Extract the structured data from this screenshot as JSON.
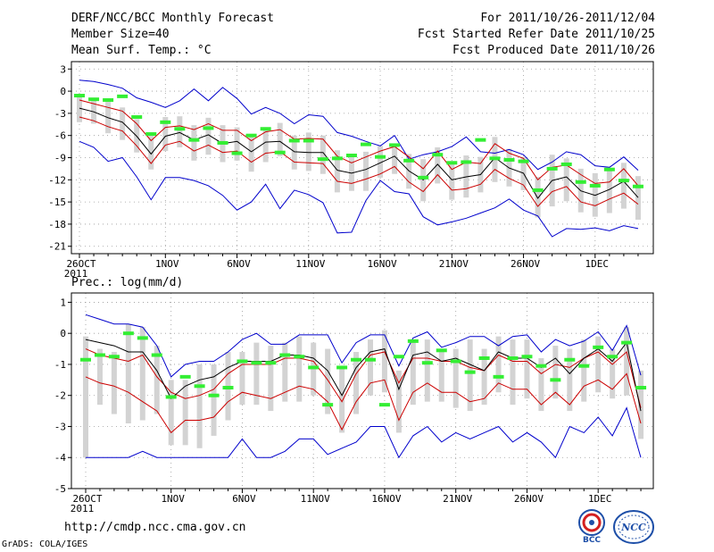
{
  "header": {
    "title": "DERF/NCC/BCC Monthly Forecast",
    "member_size": "Member Size=40",
    "variable": "Mean Surf. Temp.: °C",
    "period": "For 2011/10/26-2011/12/04",
    "start_date": "Fcst Started Refer Date 2011/10/25",
    "produced_date": "Fcst Produced Date 2011/10/26"
  },
  "footer": {
    "url": "http://cmdp.ncc.cma.gov.cn",
    "grads": "GrADS: COLA/IGES",
    "logo_left": "BCC",
    "logo_right": "NCC"
  },
  "colors": {
    "max_min": "#0000cc",
    "quartile": "#cc0000",
    "mean": "#000000",
    "box": "#d3d3d3",
    "obs": "#33ee33",
    "grid": "#999999"
  },
  "chart_data": [
    {
      "type": "line",
      "title": "Mean Surf. Temp.: °C",
      "ylim": [
        -22,
        4
      ],
      "yticks": [
        3,
        0,
        -3,
        -6,
        -9,
        -12,
        -15,
        -18,
        -21
      ],
      "xlim": [
        0,
        39
      ],
      "x_ticks": [
        {
          "day": 0,
          "label": "26OCT",
          "sub": "2011"
        },
        {
          "day": 6,
          "label": "1NOV"
        },
        {
          "day": 11,
          "label": "6NOV"
        },
        {
          "day": 16,
          "label": "11NOV"
        },
        {
          "day": 21,
          "label": "16NOV"
        },
        {
          "day": 26,
          "label": "21NOV"
        },
        {
          "day": 31,
          "label": "26NOV"
        },
        {
          "day": 36,
          "label": "1DEC"
        }
      ],
      "series": [
        {
          "name": "max",
          "values": [
            1.5,
            1.3,
            0.9,
            0.4,
            -0.9,
            -1.5,
            -2.2,
            -1.3,
            0.3,
            -1.3,
            0.5,
            -1.0,
            -3.1,
            -2.2,
            -3.0,
            -4.4,
            -3.2,
            -3.4,
            -5.6,
            -6.1,
            -6.8,
            -7.4,
            -6.0,
            -9.2,
            -8.6,
            -8.2,
            -7.5,
            -6.2,
            -8.2,
            -8.4,
            -7.9,
            -8.6,
            -10.6,
            -9.6,
            -8.2,
            -8.6,
            -10.1,
            -10.3,
            -8.9,
            -10.7
          ]
        },
        {
          "name": "q_upper",
          "values": [
            -1.2,
            -1.7,
            -2.2,
            -2.7,
            -4.4,
            -6.7,
            -4.9,
            -4.7,
            -5.2,
            -4.4,
            -5.3,
            -5.3,
            -6.7,
            -5.5,
            -5.2,
            -6.5,
            -6.4,
            -6.5,
            -8.8,
            -9.7,
            -8.9,
            -8.1,
            -7.5,
            -8.9,
            -10.5,
            -8.1,
            -10.6,
            -9.6,
            -9.8,
            -7.1,
            -8.4,
            -9.1,
            -12.0,
            -10.3,
            -10.0,
            -11.3,
            -12.5,
            -12.3,
            -10.5,
            -12.8
          ]
        },
        {
          "name": "mean",
          "values": [
            -2.3,
            -2.8,
            -3.6,
            -4.2,
            -6.1,
            -8.5,
            -6.1,
            -5.6,
            -6.6,
            -5.9,
            -7.1,
            -6.8,
            -8.2,
            -6.9,
            -6.8,
            -8.2,
            -8.3,
            -8.3,
            -10.7,
            -11.1,
            -10.6,
            -9.7,
            -8.8,
            -10.8,
            -12.0,
            -9.9,
            -12.0,
            -11.6,
            -11.3,
            -9.0,
            -10.4,
            -11.1,
            -14.5,
            -12.1,
            -11.6,
            -13.5,
            -14.1,
            -13.3,
            -12.2,
            -14.4
          ]
        },
        {
          "name": "q_lower",
          "values": [
            -3.5,
            -4.0,
            -4.8,
            -5.4,
            -7.4,
            -9.8,
            -7.3,
            -6.8,
            -8.1,
            -7.3,
            -8.3,
            -8.1,
            -9.6,
            -8.4,
            -8.2,
            -9.6,
            -9.7,
            -9.8,
            -12.2,
            -12.5,
            -11.9,
            -11.2,
            -10.2,
            -12.3,
            -13.6,
            -11.3,
            -13.4,
            -13.2,
            -12.6,
            -10.6,
            -11.8,
            -12.7,
            -15.6,
            -13.6,
            -12.9,
            -15.0,
            -15.5,
            -14.6,
            -13.8,
            -15.3
          ]
        },
        {
          "name": "min",
          "values": [
            -6.8,
            -7.6,
            -9.5,
            -9.0,
            -11.6,
            -14.7,
            -11.7,
            -11.7,
            -12.1,
            -12.8,
            -14.1,
            -16.1,
            -15.0,
            -12.6,
            -15.9,
            -13.4,
            -14.0,
            -15.1,
            -19.2,
            -19.1,
            -14.8,
            -12.1,
            -13.6,
            -13.9,
            -17.0,
            -18.1,
            -17.7,
            -17.2,
            -16.5,
            -15.8,
            -14.6,
            -16.1,
            -16.9,
            -19.7,
            -18.6,
            -18.7,
            -18.5,
            -18.9,
            -18.2,
            -18.6
          ]
        }
      ],
      "boxes": [
        {
          "hi": -0.8,
          "lo": -4.2
        },
        {
          "hi": -0.9,
          "lo": -4.4
        },
        {
          "hi": -1.3,
          "lo": -5.7
        },
        {
          "hi": -2.2,
          "lo": -6.6
        },
        {
          "hi": -3.8,
          "lo": -8.3
        },
        {
          "hi": -5.8,
          "lo": -10.6
        },
        {
          "hi": -3.5,
          "lo": -8.1
        },
        {
          "hi": -3.4,
          "lo": -7.6
        },
        {
          "hi": -4.6,
          "lo": -9.4
        },
        {
          "hi": -3.6,
          "lo": -8.6
        },
        {
          "hi": -4.6,
          "lo": -9.6
        },
        {
          "hi": -4.9,
          "lo": -9.4
        },
        {
          "hi": -5.9,
          "lo": -10.9
        },
        {
          "hi": -4.9,
          "lo": -9.6
        },
        {
          "hi": -4.3,
          "lo": -8.8
        },
        {
          "hi": -6.0,
          "lo": -10.6
        },
        {
          "hi": -5.6,
          "lo": -10.8
        },
        {
          "hi": -6.0,
          "lo": -11.2
        },
        {
          "hi": -8.0,
          "lo": -13.7
        },
        {
          "hi": -8.9,
          "lo": -13.5
        },
        {
          "hi": -8.2,
          "lo": -13.5
        },
        {
          "hi": -7.4,
          "lo": -11.7
        },
        {
          "hi": -7.1,
          "lo": -11.2
        },
        {
          "hi": -8.5,
          "lo": -13.2
        },
        {
          "hi": -9.2,
          "lo": -14.9
        },
        {
          "hi": -7.6,
          "lo": -12.5
        },
        {
          "hi": -9.9,
          "lo": -14.7
        },
        {
          "hi": -8.7,
          "lo": -14.4
        },
        {
          "hi": -8.9,
          "lo": -13.7
        },
        {
          "hi": -6.2,
          "lo": -12.3
        },
        {
          "hi": -7.8,
          "lo": -12.9
        },
        {
          "hi": -8.9,
          "lo": -13.4
        },
        {
          "hi": -11.6,
          "lo": -17.1
        },
        {
          "hi": -8.6,
          "lo": -15.6
        },
        {
          "hi": -9.1,
          "lo": -14.9
        },
        {
          "hi": -10.5,
          "lo": -16.4
        },
        {
          "hi": -11.1,
          "lo": -17.0
        },
        {
          "hi": -10.8,
          "lo": -16.5
        },
        {
          "hi": -9.7,
          "lo": -15.9
        },
        {
          "hi": -11.5,
          "lo": -17.4
        }
      ],
      "observed": [
        -0.6,
        -1.1,
        -1.2,
        -0.7,
        -3.5,
        -5.8,
        -4.2,
        -5.1,
        -6.6,
        -5.0,
        -7.0,
        -8.4,
        -6.0,
        -5.1,
        -8.3,
        -6.7,
        -6.7,
        -9.2,
        -9.1,
        -8.7,
        -7.2,
        -8.9,
        -7.3,
        -9.4,
        -11.7,
        -8.6,
        -9.7,
        -9.6,
        -6.6,
        -9.1,
        -9.3,
        -9.5,
        -13.4,
        -10.5,
        -9.9,
        -12.3,
        -12.8,
        -10.6,
        -12.1,
        -12.9
      ]
    },
    {
      "type": "line",
      "title": "Prec.: log(mm/d)",
      "ylim": [
        -5,
        1.3
      ],
      "yticks": [
        1,
        0,
        -1,
        -2,
        -3,
        -4,
        -5
      ],
      "xlim": [
        0,
        39
      ],
      "x_ticks": [
        {
          "day": 0,
          "label": "26OCT",
          "sub": "2011"
        },
        {
          "day": 6,
          "label": "1NOV"
        },
        {
          "day": 11,
          "label": "6NOV"
        },
        {
          "day": 16,
          "label": "11NOV"
        },
        {
          "day": 21,
          "label": "16NOV"
        },
        {
          "day": 26,
          "label": "21NOV"
        },
        {
          "day": 31,
          "label": "26NOV"
        },
        {
          "day": 36,
          "label": "1DEC"
        }
      ],
      "series": [
        {
          "name": "max",
          "values": [
            0.6,
            0.45,
            0.3,
            0.3,
            0.2,
            -0.4,
            -1.4,
            -1.0,
            -0.9,
            -0.9,
            -0.6,
            -0.2,
            0.0,
            -0.35,
            -0.35,
            -0.05,
            -0.05,
            -0.05,
            -0.95,
            -0.3,
            -0.05,
            -0.05,
            -1.05,
            -0.15,
            0.05,
            -0.45,
            -0.3,
            -0.1,
            -0.1,
            -0.4,
            -0.1,
            -0.05,
            -0.6,
            -0.2,
            -0.4,
            -0.25,
            0.05,
            -0.55,
            0.25,
            -1.35
          ]
        },
        {
          "name": "q_upper",
          "values": [
            -0.5,
            -0.7,
            -0.8,
            -0.9,
            -0.7,
            -1.4,
            -1.9,
            -2.1,
            -2.0,
            -1.8,
            -1.3,
            -1.0,
            -1.0,
            -1.0,
            -0.8,
            -0.8,
            -0.9,
            -1.5,
            -2.2,
            -1.3,
            -0.7,
            -0.6,
            -1.6,
            -0.8,
            -0.8,
            -0.9,
            -0.9,
            -1.1,
            -1.2,
            -0.7,
            -0.9,
            -0.9,
            -1.3,
            -1.0,
            -1.1,
            -0.8,
            -0.6,
            -1.0,
            -0.6,
            -2.4
          ]
        },
        {
          "name": "mean",
          "values": [
            -0.2,
            -0.3,
            -0.4,
            -0.6,
            -0.6,
            -1.2,
            -2.1,
            -1.7,
            -1.5,
            -1.4,
            -1.1,
            -0.9,
            -0.9,
            -0.9,
            -0.7,
            -0.7,
            -0.8,
            -1.2,
            -2.0,
            -1.1,
            -0.6,
            -0.5,
            -1.8,
            -0.7,
            -0.6,
            -0.9,
            -0.8,
            -1.0,
            -1.2,
            -0.6,
            -0.8,
            -0.8,
            -1.1,
            -0.8,
            -1.3,
            -0.8,
            -0.5,
            -0.9,
            -0.3,
            -2.5
          ]
        },
        {
          "name": "q_lower",
          "values": [
            -1.4,
            -1.6,
            -1.7,
            -1.9,
            -2.2,
            -2.5,
            -3.2,
            -2.8,
            -2.8,
            -2.7,
            -2.2,
            -1.9,
            -2.0,
            -2.1,
            -1.9,
            -1.7,
            -1.8,
            -2.2,
            -3.1,
            -2.2,
            -1.6,
            -1.5,
            -2.8,
            -1.9,
            -1.6,
            -1.9,
            -1.9,
            -2.2,
            -2.1,
            -1.6,
            -1.8,
            -1.8,
            -2.3,
            -1.9,
            -2.3,
            -1.7,
            -1.5,
            -1.8,
            -1.3,
            -2.9
          ]
        },
        {
          "name": "min",
          "values": [
            -4.0,
            -4.0,
            -4.0,
            -4.0,
            -3.8,
            -4.0,
            -4.0,
            -4.0,
            -4.0,
            -4.0,
            -4.0,
            -3.4,
            -4.0,
            -4.0,
            -3.8,
            -3.4,
            -3.4,
            -3.9,
            -3.7,
            -3.5,
            -3.0,
            -3.0,
            -4.0,
            -3.3,
            -3.0,
            -3.5,
            -3.2,
            -3.4,
            -3.2,
            -3.0,
            -3.5,
            -3.2,
            -3.5,
            -4.0,
            -3.0,
            -3.2,
            -2.7,
            -3.3,
            -2.4,
            -4.0
          ]
        }
      ],
      "boxes": [
        {
          "hi": -0.1,
          "lo": -4.0
        },
        {
          "hi": -0.5,
          "lo": -2.3
        },
        {
          "hi": -0.6,
          "lo": -2.6
        },
        {
          "hi": 0.3,
          "lo": -2.9
        },
        {
          "hi": 0.2,
          "lo": -2.8
        },
        {
          "hi": -0.4,
          "lo": -2.6
        },
        {
          "hi": -1.5,
          "lo": -3.6
        },
        {
          "hi": -1.5,
          "lo": -3.6
        },
        {
          "hi": -1.0,
          "lo": -3.7
        },
        {
          "hi": -1.0,
          "lo": -3.3
        },
        {
          "hi": -0.6,
          "lo": -2.8
        },
        {
          "hi": -0.6,
          "lo": -2.3
        },
        {
          "hi": -0.3,
          "lo": -2.3
        },
        {
          "hi": -0.4,
          "lo": -2.5
        },
        {
          "hi": -0.3,
          "lo": -2.2
        },
        {
          "hi": -0.1,
          "lo": -2.2
        },
        {
          "hi": -0.3,
          "lo": -2.0
        },
        {
          "hi": -0.5,
          "lo": -2.6
        },
        {
          "hi": -1.1,
          "lo": -3.2
        },
        {
          "hi": -0.6,
          "lo": -2.6
        },
        {
          "hi": -0.2,
          "lo": -2.0
        },
        {
          "hi": 0.1,
          "lo": -1.9
        },
        {
          "hi": -1.2,
          "lo": -3.2
        },
        {
          "hi": -0.2,
          "lo": -2.3
        },
        {
          "hi": -0.2,
          "lo": -2.2
        },
        {
          "hi": -0.5,
          "lo": -2.2
        },
        {
          "hi": -0.5,
          "lo": -2.4
        },
        {
          "hi": -0.2,
          "lo": -2.5
        },
        {
          "hi": -0.5,
          "lo": -2.3
        },
        {
          "hi": -0.1,
          "lo": -1.9
        },
        {
          "hi": -0.2,
          "lo": -2.3
        },
        {
          "hi": -0.2,
          "lo": -2.1
        },
        {
          "hi": -0.8,
          "lo": -2.5
        },
        {
          "hi": -0.4,
          "lo": -2.1
        },
        {
          "hi": -0.5,
          "lo": -2.5
        },
        {
          "hi": -0.2,
          "lo": -2.2
        },
        {
          "hi": -0.1,
          "lo": -1.9
        },
        {
          "hi": -0.5,
          "lo": -2.1
        },
        {
          "hi": 0.2,
          "lo": -2.0
        },
        {
          "hi": -1.2,
          "lo": -3.4
        }
      ],
      "observed": [
        -0.85,
        -0.7,
        -0.75,
        0.0,
        -0.15,
        -0.7,
        -2.05,
        -1.4,
        -1.7,
        -2.0,
        -1.75,
        -0.9,
        -0.95,
        -0.95,
        -0.7,
        -0.75,
        -1.1,
        -2.3,
        -1.1,
        -0.85,
        -0.85,
        -2.3,
        -0.75,
        -0.25,
        -0.95,
        -0.55,
        -0.9,
        -1.25,
        -0.8,
        -1.4,
        -0.8,
        -0.75,
        -1.05,
        -1.5,
        -0.85,
        -1.05,
        -0.45,
        -0.75,
        -0.3,
        -1.75
      ]
    }
  ]
}
